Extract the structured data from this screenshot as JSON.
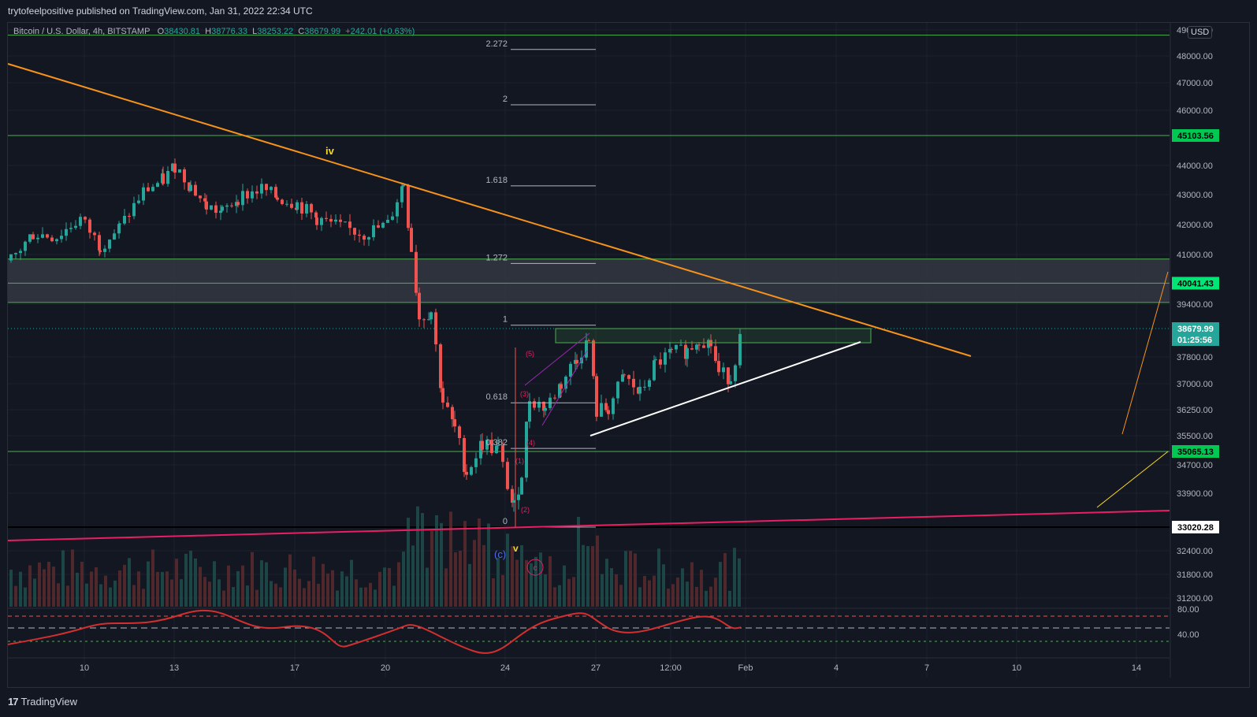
{
  "header": {
    "publisher_text": "trytofeelpositive published on TradingView.com, Jan 31, 2022 22:34 UTC"
  },
  "footer": {
    "brand": "TradingView",
    "logo_mark": "17"
  },
  "legend": {
    "symbol": "Bitcoin / U.S. Dollar, 4h, BITSTAMP",
    "open_label": "O",
    "open": "38430.81",
    "high_label": "H",
    "high": "38776.33",
    "low_label": "L",
    "low": "38253.22",
    "close_label": "C",
    "close": "38679.99",
    "change": "+242.01 (+0.63%)"
  },
  "currency_button": "USD",
  "colors": {
    "background": "#131722",
    "up": "#26a69a",
    "down": "#ef5350",
    "trendline_orange": "#f7931a",
    "support_pink": "#e91e63",
    "level_green": "#4caf50",
    "grid": "#1e222d"
  },
  "chart_data": {
    "type": "candlestick",
    "symbol": "BTCUSD",
    "timeframe": "4h",
    "ylim": [
      30700,
      49000
    ],
    "price_axis_ticks": [
      "49000.00",
      "48000.00",
      "47000.00",
      "46000.00",
      "44000.00",
      "43000.00",
      "42000.00",
      "41000.00",
      "40000.00",
      "39400.00",
      "37800.00",
      "37000.00",
      "36250.00",
      "35500.00",
      "34700.00",
      "33900.00",
      "32400.00",
      "31800.00",
      "31200.00"
    ],
    "price_labels": [
      {
        "value": 45103.56,
        "text": "45103.56",
        "color": "#00c853",
        "text_color": "#000000"
      },
      {
        "value": 40041.43,
        "text": "40041.43",
        "color": "#00e676",
        "text_color": "#000000"
      },
      {
        "value": 38679.99,
        "text": "38679.99",
        "text2": "01:25:56",
        "color": "#26a69a",
        "text_color": "#ffffff"
      },
      {
        "value": 35065.13,
        "text": "35065.13",
        "color": "#00c853",
        "text_color": "#000000"
      },
      {
        "value": 33020.28,
        "text": "33020.28",
        "color": "#ffffff",
        "text_color": "#000000"
      }
    ],
    "time_axis_ticks": [
      "10",
      "13",
      "17",
      "20",
      "24",
      "27",
      "12:00",
      "Feb",
      "4",
      "7",
      "10",
      "14"
    ],
    "horizontal_levels": [
      48800,
      45103.56,
      40850,
      40041.43,
      39450,
      35065.13
    ],
    "support_zone": [
      39450,
      40850
    ],
    "fib_levels": [
      {
        "label": "2.272",
        "value": 48250
      },
      {
        "label": "2",
        "value": 46200
      },
      {
        "label": "1.618",
        "value": 43300
      },
      {
        "label": "1.272",
        "value": 40700
      },
      {
        "label": "1",
        "value": 38780
      },
      {
        "label": "0.618",
        "value": 36450
      },
      {
        "label": "0.382",
        "value": 35150
      },
      {
        "label": "0",
        "value": 33020.28
      }
    ],
    "wave_labels": [
      {
        "text": "iv",
        "color": "#f9d71c"
      },
      {
        "text": "v",
        "color": "#f9d71c"
      },
      {
        "text": "(c)",
        "color": "#4f6bed"
      },
      {
        "text": "c",
        "color": "#e91e63"
      },
      {
        "text": "(1)",
        "color": "#e91e63"
      },
      {
        "text": "(2)",
        "color": "#e91e63"
      },
      {
        "text": "(3)",
        "color": "#e91e63"
      },
      {
        "text": "(4)",
        "color": "#e91e63"
      },
      {
        "text": "(5)",
        "color": "#e91e63"
      }
    ],
    "rsi": {
      "ticks": [
        "80.00",
        "40.00"
      ],
      "upper": 80,
      "middle": 60,
      "lower": 40
    }
  }
}
